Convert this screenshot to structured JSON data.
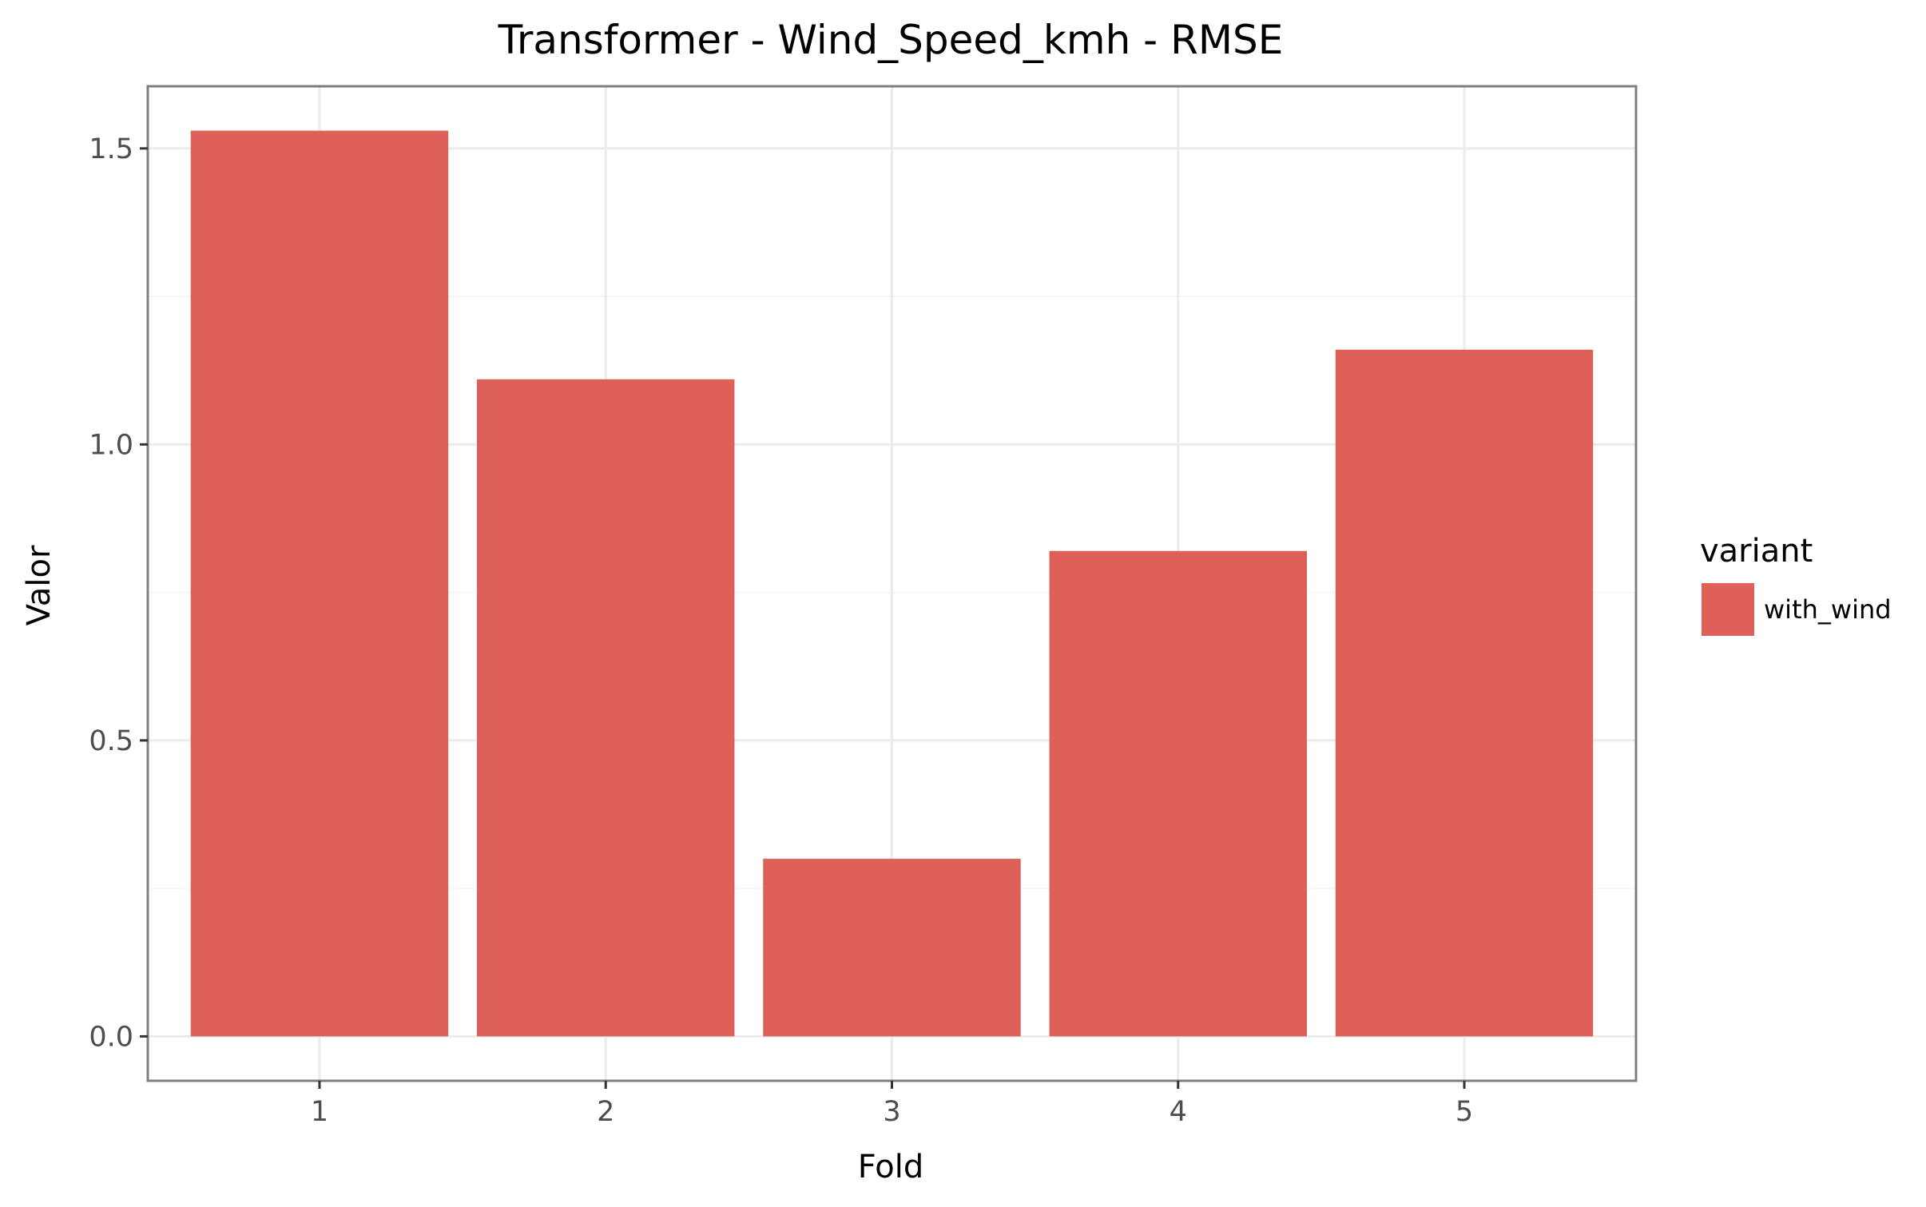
{
  "chart_data": {
    "type": "bar",
    "title": "Transformer - Wind_Speed_kmh - RMSE",
    "xlabel": "Fold",
    "ylabel": "Valor",
    "categories": [
      "1",
      "2",
      "3",
      "4",
      "5"
    ],
    "series": [
      {
        "name": "with_wind",
        "values": [
          1.53,
          1.11,
          0.3,
          0.82,
          1.16
        ]
      }
    ],
    "ylim": [
      -0.075,
      1.605
    ],
    "yticks": [
      0.0,
      0.5,
      1.0,
      1.5
    ],
    "ytick_labels": [
      "0.0",
      "0.5",
      "1.0",
      "1.5"
    ],
    "grid": true,
    "legend": {
      "title": "variant",
      "position": "right"
    },
    "colors": {
      "bar": "#de6058",
      "panel_border": "#7f7f7f",
      "grid_major": "#ebebeb",
      "grid_minor": "#f5f5f5",
      "tick": "#333333"
    }
  }
}
